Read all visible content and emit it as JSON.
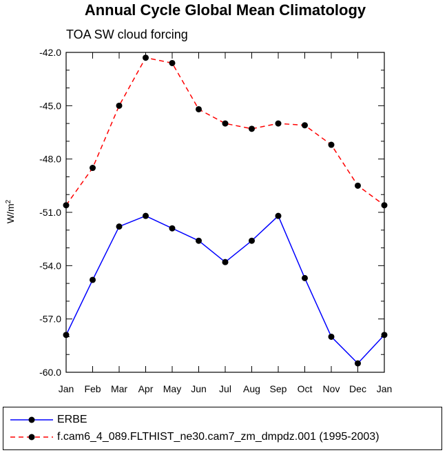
{
  "chart_data": {
    "type": "line",
    "title": "Annual Cycle Global Mean Climatology",
    "subtitle": "TOA SW cloud forcing",
    "ylabel": "W/m",
    "ylabel_sup": "2",
    "categories": [
      "Jan",
      "Feb",
      "Mar",
      "Apr",
      "May",
      "Jun",
      "Jul",
      "Aug",
      "Sep",
      "Oct",
      "Nov",
      "Dec",
      "Jan"
    ],
    "ylim": [
      -60.0,
      -42.0
    ],
    "yticks": [
      "-42.0",
      "-45.0",
      "-48.0",
      "-51.0",
      "-54.0",
      "-57.0",
      "-60.0"
    ],
    "ytick_values": [
      -42,
      -45,
      -48,
      -51,
      -54,
      -57,
      -60
    ],
    "series": [
      {
        "name": "ERBE",
        "color": "#0000ff",
        "dash": "solid",
        "values": [
          -57.9,
          -54.8,
          -51.8,
          -51.2,
          -51.9,
          -52.6,
          -53.8,
          -52.6,
          -51.2,
          -54.7,
          -58.0,
          -59.5,
          -57.9
        ]
      },
      {
        "name": "f.cam6_4_089.FLTHIST_ne30.cam7_zm_dmpdz.001 (1995-2003)",
        "color": "#ff0000",
        "dash": "dashed",
        "values": [
          -50.6,
          -48.5,
          -45.0,
          -42.3,
          -42.6,
          -45.2,
          -46.0,
          -46.3,
          -46.0,
          -46.1,
          -47.2,
          -49.5,
          -50.6
        ]
      }
    ]
  }
}
